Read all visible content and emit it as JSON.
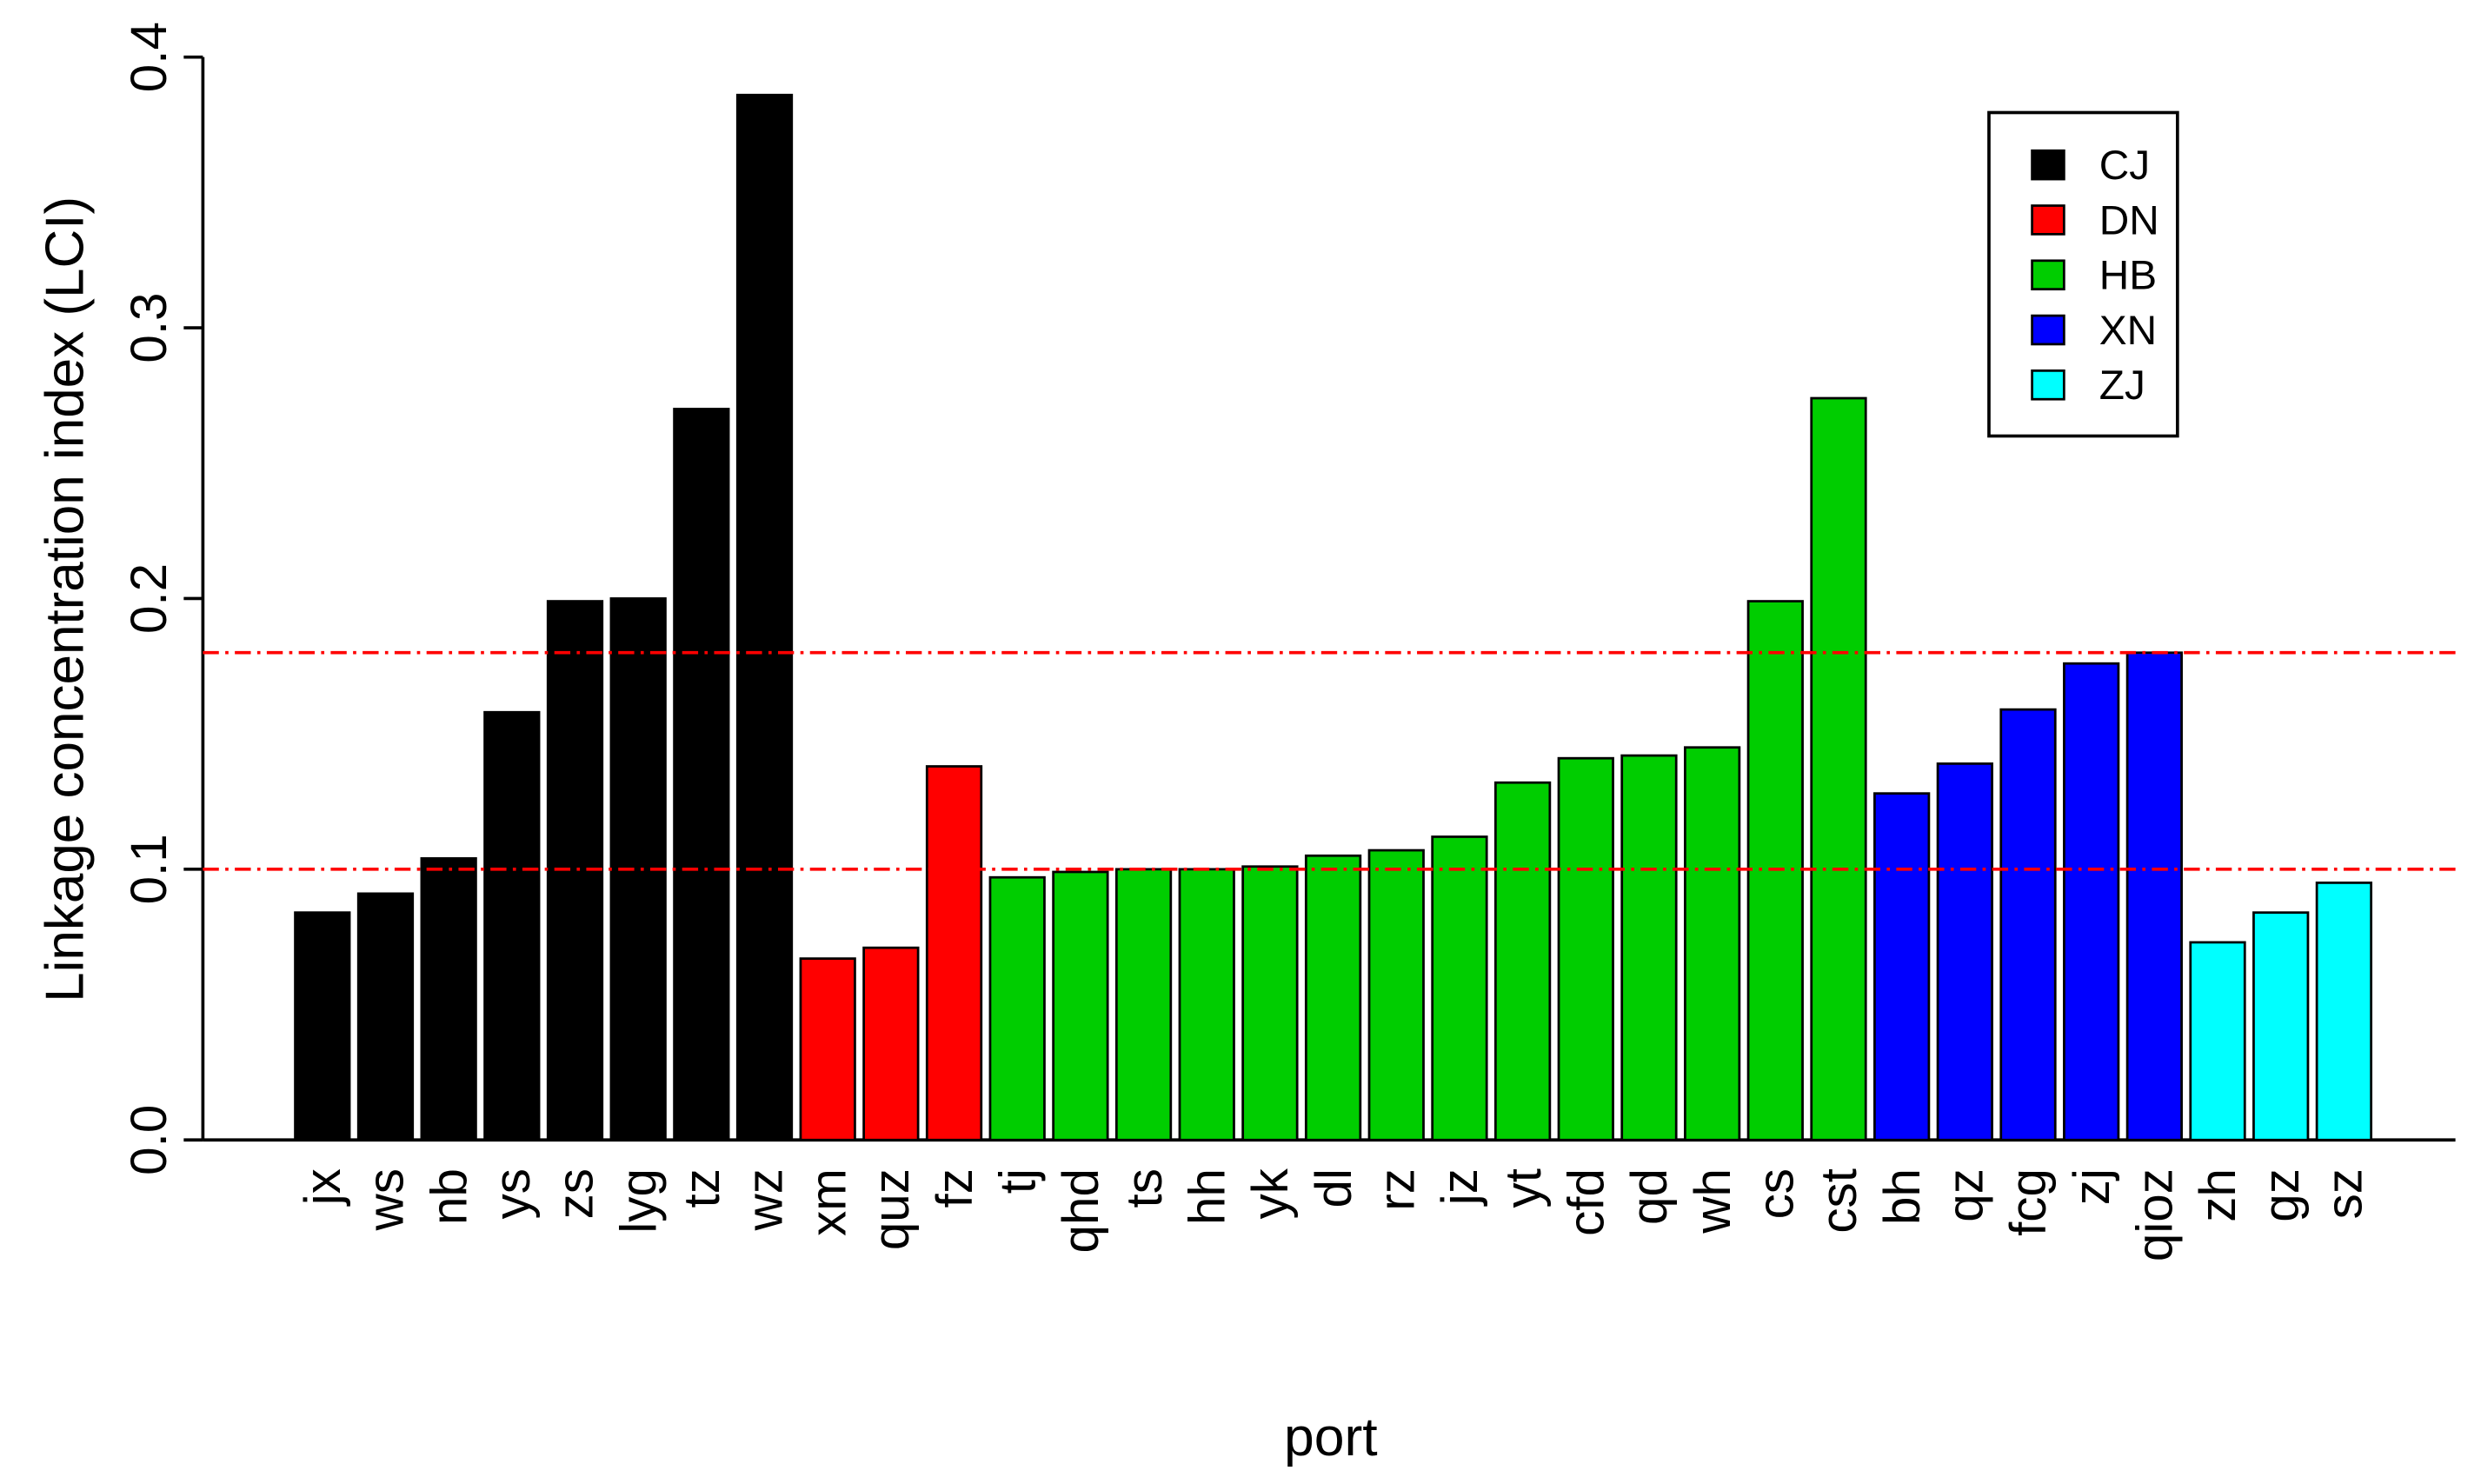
{
  "chart_data": {
    "type": "bar",
    "x_label": "port",
    "y_label": "Linkage concentration index (LCI)",
    "categories": [
      "jx",
      "ws",
      "nb",
      "ys",
      "zs",
      "lyg",
      "tz",
      "wz",
      "xm",
      "quz",
      "fz",
      "tj",
      "qhd",
      "ts",
      "hh",
      "yk",
      "dl",
      "rz",
      "jz",
      "yt",
      "cfd",
      "qd",
      "wh",
      "cs",
      "cst",
      "bh",
      "qz",
      "fcg",
      "zj",
      "qioz",
      "zh",
      "gz",
      "sz"
    ],
    "series": [
      {
        "name": "CJ",
        "color": "#000000",
        "values": [
          0.084,
          0.091,
          0.104,
          0.158,
          0.199,
          0.2,
          0.27,
          0.386,
          null,
          null,
          null,
          null,
          null,
          null,
          null,
          null,
          null,
          null,
          null,
          null,
          null,
          null,
          null,
          null,
          null,
          null,
          null,
          null,
          null,
          null,
          null,
          null,
          null
        ]
      },
      {
        "name": "DN",
        "color": "#ff0000",
        "values": [
          null,
          null,
          null,
          null,
          null,
          null,
          null,
          null,
          0.067,
          0.071,
          0.138,
          null,
          null,
          null,
          null,
          null,
          null,
          null,
          null,
          null,
          null,
          null,
          null,
          null,
          null,
          null,
          null,
          null,
          null,
          null,
          null,
          null,
          null
        ]
      },
      {
        "name": "HB",
        "color": "#00cd00",
        "values": [
          null,
          null,
          null,
          null,
          null,
          null,
          null,
          null,
          null,
          null,
          null,
          0.097,
          0.099,
          0.1,
          0.1,
          0.101,
          0.105,
          0.107,
          0.112,
          0.132,
          0.141,
          0.142,
          0.145,
          0.199,
          0.274,
          null,
          null,
          null,
          null,
          null,
          null,
          null,
          null
        ]
      },
      {
        "name": "XN",
        "color": "#0000ff",
        "values": [
          null,
          null,
          null,
          null,
          null,
          null,
          null,
          null,
          null,
          null,
          null,
          null,
          null,
          null,
          null,
          null,
          null,
          null,
          null,
          null,
          null,
          null,
          null,
          null,
          null,
          0.128,
          0.139,
          0.159,
          0.176,
          0.18,
          null,
          null,
          null
        ]
      },
      {
        "name": "ZJ",
        "color": "#00ffff",
        "values": [
          null,
          null,
          null,
          null,
          null,
          null,
          null,
          null,
          null,
          null,
          null,
          null,
          null,
          null,
          null,
          null,
          null,
          null,
          null,
          null,
          null,
          null,
          null,
          null,
          null,
          null,
          null,
          null,
          null,
          null,
          0.073,
          0.084,
          0.095
        ]
      }
    ],
    "reference_lines": [
      0.18,
      0.1
    ],
    "reference_color": "#ff0000",
    "ylim": [
      0,
      0.4
    ],
    "yticks": [
      {
        "value": 0,
        "label": "0.0"
      },
      0.1,
      0.2,
      0.3,
      0.4
    ],
    "legend": "top-right"
  }
}
